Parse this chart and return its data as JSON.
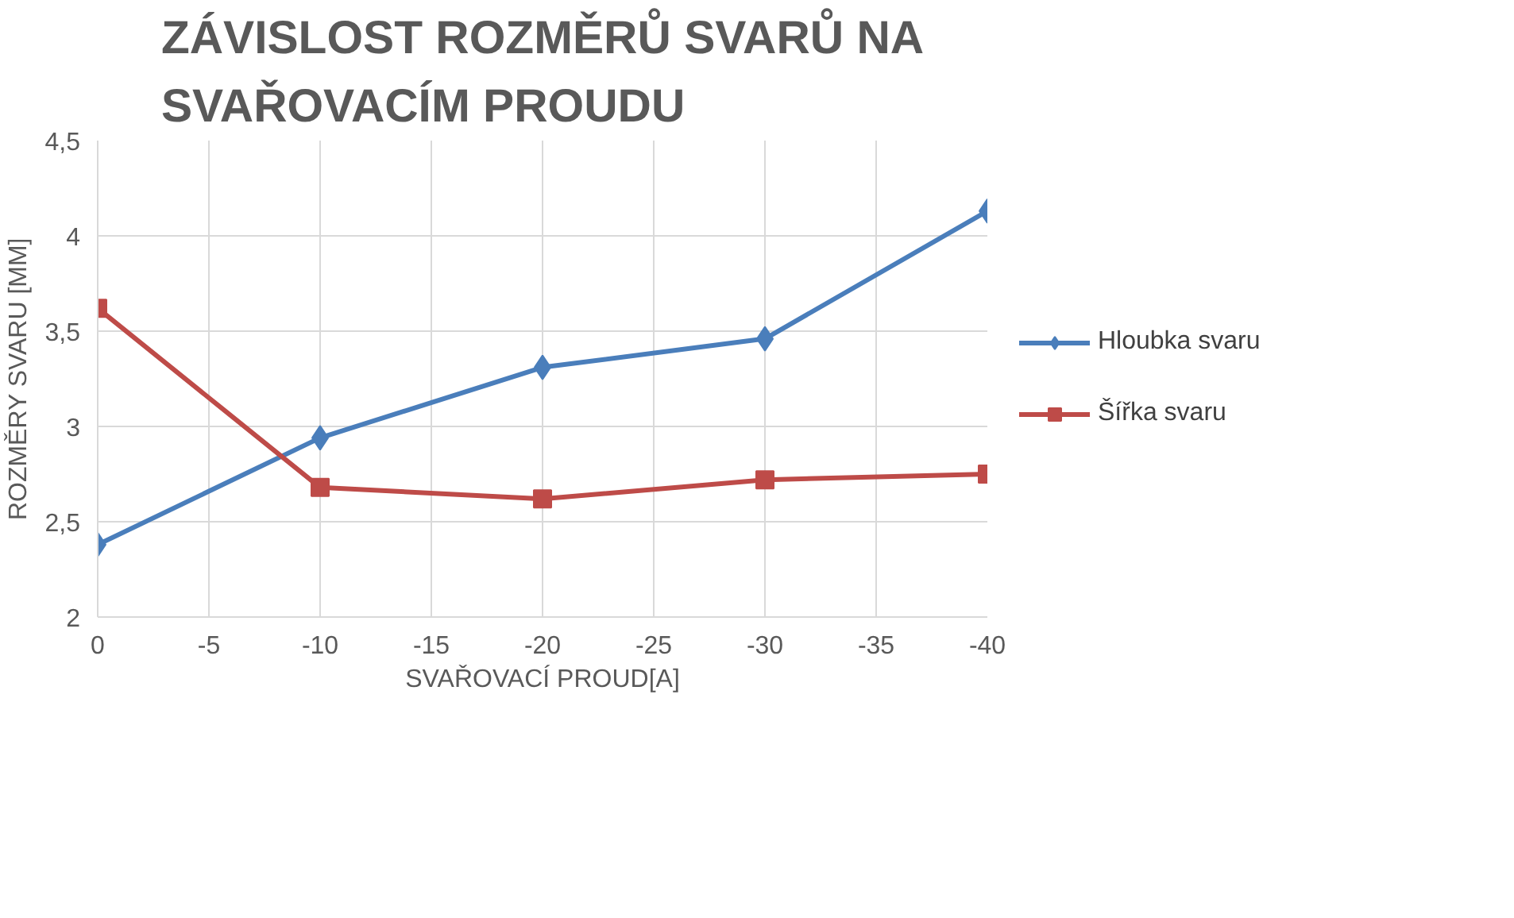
{
  "chart_data": {
    "type": "line",
    "title": "ZÁVISLOST ROZMĚRŮ SVARŮ NA SVAŘOVACÍM PROUDU",
    "xlabel": "SVAŘOVACÍ PROUD[A]",
    "ylabel": "ROZMĚRY SVARU [MM]",
    "x": [
      0,
      -10,
      -20,
      -30,
      -40
    ],
    "series": [
      {
        "name": "Hloubka svaru",
        "color": "#4a7ebb",
        "marker": "diamond",
        "values": [
          2.38,
          2.94,
          3.31,
          3.46,
          4.13
        ]
      },
      {
        "name": "Šířka svaru",
        "color": "#be4b48",
        "marker": "square",
        "values": [
          3.62,
          2.68,
          2.62,
          2.72,
          2.75
        ]
      }
    ],
    "xlim": [
      0,
      -40
    ],
    "xticks": [
      0,
      -5,
      -10,
      -15,
      -20,
      -25,
      -30,
      -35,
      -40
    ],
    "ylim": [
      2,
      4.5
    ],
    "yticks": [
      2,
      {
        "value": 2.5,
        "label": "2,5"
      },
      3,
      {
        "value": 3.5,
        "label": "3,5"
      },
      4,
      {
        "value": 4.5,
        "label": "4,5"
      }
    ],
    "grid": true,
    "legend": "right"
  }
}
